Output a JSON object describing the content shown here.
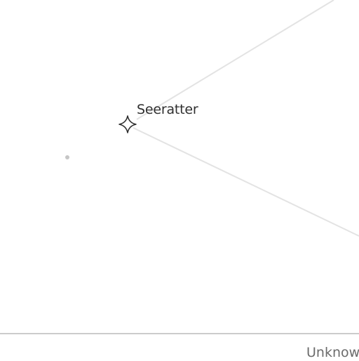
{
  "map": {
    "place_label": "Seeratter",
    "icons": {
      "place_marker": "four-point-star-icon",
      "point": "dot-icon"
    },
    "colors": {
      "background": "#ffffff",
      "route_line": "#e3e3e3",
      "marker_stroke": "#2f2f2f",
      "point": "#c6c6c6"
    }
  },
  "bottom_bar": {
    "status_text": "Unknow"
  }
}
